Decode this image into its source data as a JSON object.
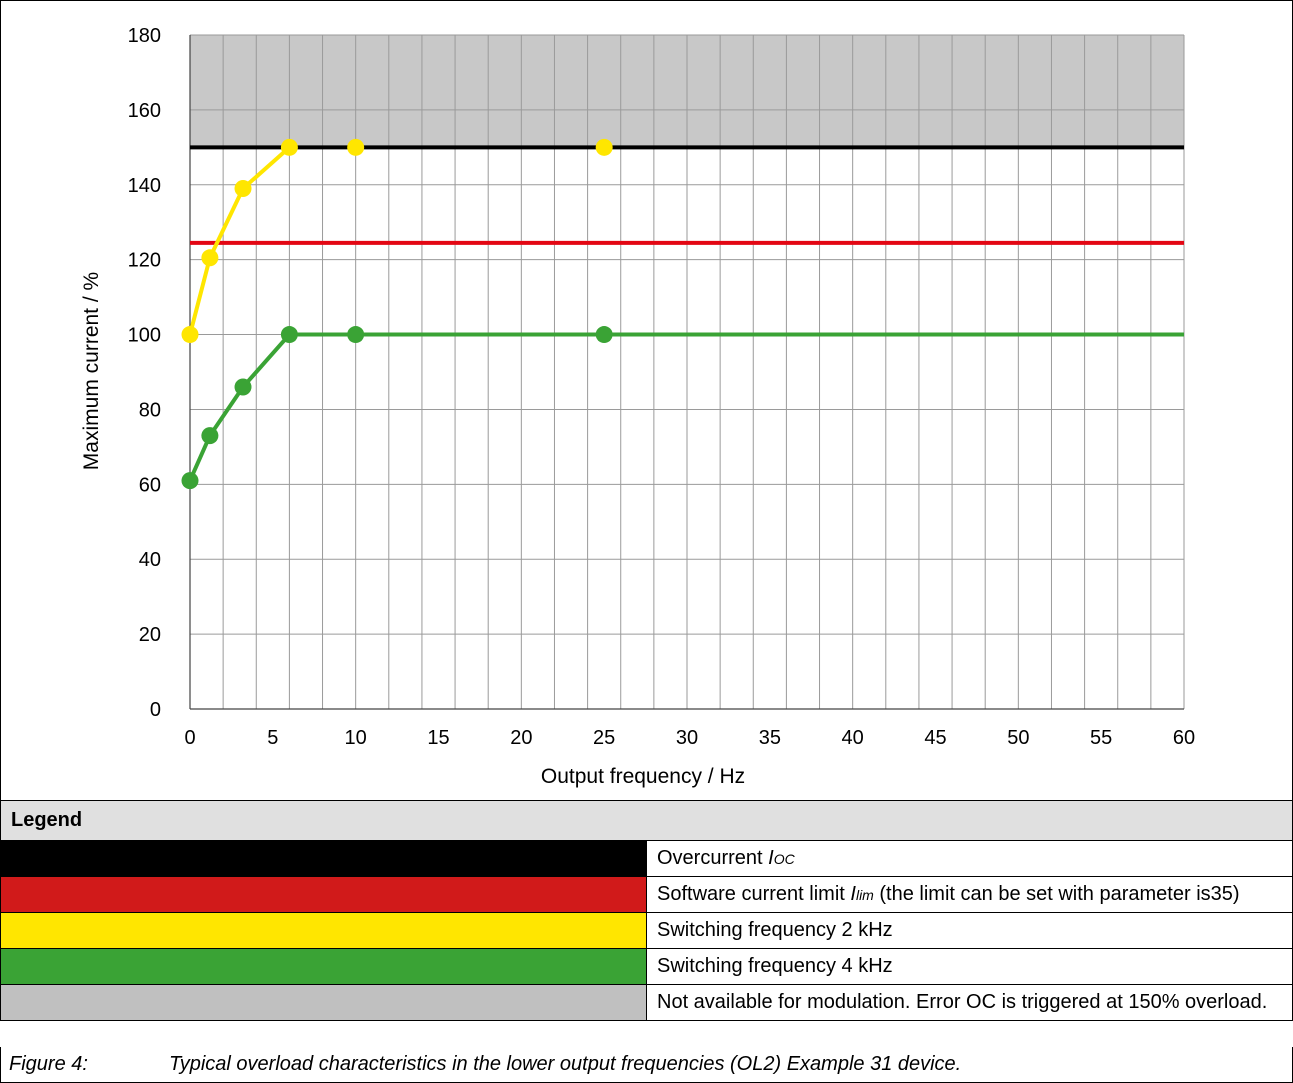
{
  "chart_data": {
    "type": "line",
    "xlabel": "Output frequency / Hz",
    "ylabel": "Maximum current / %",
    "xlim": [
      0,
      60
    ],
    "ylim": [
      0,
      180
    ],
    "xticks": [
      0,
      5,
      10,
      15,
      20,
      25,
      30,
      35,
      40,
      45,
      50,
      55,
      60
    ],
    "yticks": [
      0,
      20,
      40,
      60,
      80,
      100,
      120,
      140,
      160,
      180
    ],
    "grid": true,
    "shaded_region": {
      "y_from": 150,
      "y_to": 180,
      "color": "#c8c8c8"
    },
    "series": [
      {
        "name": "Overcurrent",
        "color": "#000000",
        "x": [
          0,
          60
        ],
        "y": [
          150,
          150
        ],
        "markers": false
      },
      {
        "name": "Software current limit",
        "color": "#e30613",
        "x": [
          0,
          60
        ],
        "y": [
          124.5,
          124.5
        ],
        "markers": false
      },
      {
        "name": "Switching frequency 2 kHz",
        "color": "#ffe600",
        "x": [
          0,
          1.2,
          3.2,
          6,
          10,
          25
        ],
        "y": [
          100,
          120.5,
          139,
          150,
          150,
          150
        ],
        "markers": true,
        "line_until": 6
      },
      {
        "name": "Switching frequency 4 kHz",
        "color": "#3aa335",
        "x": [
          0,
          1.2,
          3.2,
          6,
          10,
          25,
          60
        ],
        "y": [
          61,
          73,
          86,
          100,
          100,
          100,
          100
        ],
        "markers": true,
        "marker_count": 6
      }
    ]
  },
  "legend": {
    "header": "Legend",
    "rows": [
      {
        "color": "#000000",
        "text_before": "Overcurrent ",
        "symbol": "I",
        "subscript": "OC",
        "text_after": ""
      },
      {
        "color": "#d11a1a",
        "text_before": "Software current limit ",
        "symbol": "I",
        "subscript": "lim",
        "text_after": " (the limit can be set with parameter is35)"
      },
      {
        "color": "#ffe600",
        "text_before": "Switching frequency 2 kHz",
        "symbol": "",
        "subscript": "",
        "text_after": ""
      },
      {
        "color": "#3aa335",
        "text_before": "Switching frequency 4 kHz",
        "symbol": "",
        "subscript": "",
        "text_after": ""
      },
      {
        "color": "#c0c0c0",
        "text_before": "Not available for modulation. Error OC is triggered at 150% overload.",
        "symbol": "",
        "subscript": "",
        "text_after": ""
      }
    ]
  },
  "caption": {
    "number": "Figure 4:",
    "text": "Typical overload characteristics in the lower output frequencies (OL2) Example 31 device."
  }
}
